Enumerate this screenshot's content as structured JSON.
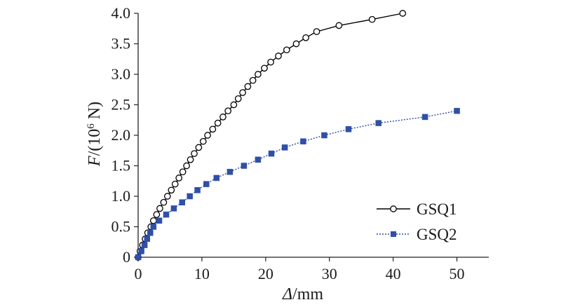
{
  "chart_data": {
    "type": "scatter",
    "xlabel": {
      "italic": "Δ",
      "rest": "/mm"
    },
    "ylabel": {
      "italic": "F",
      "pre": "/(10",
      "sup": "6",
      "post": " N)"
    },
    "xlim": [
      0,
      55
    ],
    "ylim": [
      0,
      4.0
    ],
    "xticks": [
      0,
      10,
      20,
      30,
      40,
      50
    ],
    "yticks": [
      0,
      0.5,
      1.0,
      1.5,
      2.0,
      2.5,
      3.0,
      3.5,
      4.0
    ],
    "xtick_labels": [
      "0",
      "10",
      "20",
      "30",
      "40",
      "50"
    ],
    "ytick_labels": [
      "0",
      "0.5",
      "1.0",
      "1.5",
      "2.0",
      "2.5",
      "3.0",
      "3.5",
      "4.0"
    ],
    "grid": false,
    "legend_position": "bottom-right",
    "series": [
      {
        "name": "GSQ1",
        "color": "#000000",
        "line_style": "solid",
        "marker": "open-circle",
        "points": [
          [
            0,
            0
          ],
          [
            0.3,
            0.1
          ],
          [
            0.7,
            0.2
          ],
          [
            1.1,
            0.3
          ],
          [
            1.5,
            0.4
          ],
          [
            2.0,
            0.5
          ],
          [
            2.4,
            0.6
          ],
          [
            2.9,
            0.7
          ],
          [
            3.4,
            0.8
          ],
          [
            4.0,
            0.9
          ],
          [
            4.6,
            1.0
          ],
          [
            5.2,
            1.1
          ],
          [
            5.8,
            1.2
          ],
          [
            6.4,
            1.3
          ],
          [
            7.0,
            1.4
          ],
          [
            7.6,
            1.5
          ],
          [
            8.2,
            1.6
          ],
          [
            8.8,
            1.7
          ],
          [
            9.5,
            1.8
          ],
          [
            10.2,
            1.9
          ],
          [
            10.9,
            2.0
          ],
          [
            11.7,
            2.1
          ],
          [
            12.5,
            2.2
          ],
          [
            13.3,
            2.3
          ],
          [
            14.1,
            2.4
          ],
          [
            15.0,
            2.5
          ],
          [
            15.7,
            2.6
          ],
          [
            16.4,
            2.7
          ],
          [
            17.2,
            2.8
          ],
          [
            18.0,
            2.9
          ],
          [
            18.8,
            3.0
          ],
          [
            19.8,
            3.1
          ],
          [
            20.8,
            3.2
          ],
          [
            22.0,
            3.3
          ],
          [
            23.3,
            3.4
          ],
          [
            24.8,
            3.5
          ],
          [
            26.3,
            3.6
          ],
          [
            28.0,
            3.7
          ],
          [
            31.5,
            3.8
          ],
          [
            36.7,
            3.9
          ],
          [
            41.5,
            4.0
          ]
        ]
      },
      {
        "name": "GSQ2",
        "color": "#2f4fa8",
        "line_style": "dotted",
        "marker": "filled-square",
        "points": [
          [
            0,
            0
          ],
          [
            0.5,
            0.1
          ],
          [
            1.0,
            0.2
          ],
          [
            1.4,
            0.3
          ],
          [
            1.9,
            0.4
          ],
          [
            2.4,
            0.5
          ],
          [
            3.3,
            0.6
          ],
          [
            4.4,
            0.7
          ],
          [
            5.6,
            0.8
          ],
          [
            6.9,
            0.9
          ],
          [
            8.1,
            1.0
          ],
          [
            9.3,
            1.1
          ],
          [
            10.7,
            1.2
          ],
          [
            12.3,
            1.3
          ],
          [
            14.4,
            1.4
          ],
          [
            16.6,
            1.5
          ],
          [
            18.8,
            1.6
          ],
          [
            20.9,
            1.7
          ],
          [
            23.0,
            1.8
          ],
          [
            25.9,
            1.9
          ],
          [
            29.2,
            2.0
          ],
          [
            33.0,
            2.1
          ],
          [
            37.7,
            2.2
          ],
          [
            45.0,
            2.3
          ],
          [
            50.0,
            2.4
          ]
        ]
      }
    ]
  }
}
